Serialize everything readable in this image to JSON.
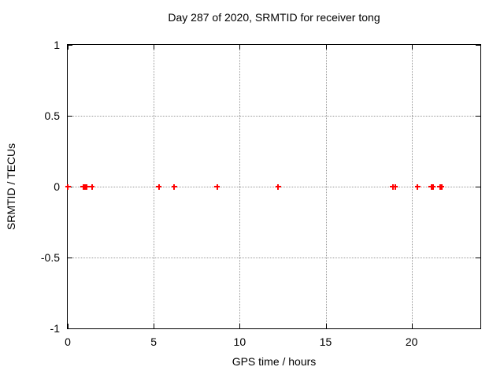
{
  "title": "Day 287 of 2020, SRMTID for receiver tong",
  "colors": {
    "marker": "#ff0000",
    "grid": "#9a9a9a",
    "axis": "#000000",
    "background": "#ffffff"
  },
  "chart_data": {
    "type": "scatter",
    "title": "Day 287 of 2020, SRMTID for receiver tong",
    "xlabel": "GPS time / hours",
    "ylabel": "SRMTID / TECUs",
    "xlim": [
      0,
      24
    ],
    "ylim": [
      -1,
      1
    ],
    "xticks": [
      0,
      5,
      10,
      15,
      20
    ],
    "yticks": [
      1,
      0.5,
      0,
      -0.5,
      -1
    ],
    "grid": true,
    "legend_position": "none",
    "marker": "plus",
    "marker_color": "#ff0000",
    "series": [
      {
        "name": "SRMTID",
        "x": [
          0.0,
          0.9,
          0.95,
          1.0,
          1.05,
          1.1,
          1.4,
          5.3,
          6.2,
          8.7,
          12.25,
          18.9,
          19.05,
          20.35,
          21.15,
          21.25,
          21.65,
          21.75
        ],
        "y": [
          0,
          0,
          0,
          0,
          0,
          0,
          0,
          0,
          0,
          0,
          0,
          0,
          0,
          0,
          0,
          0,
          0,
          0
        ]
      }
    ]
  }
}
